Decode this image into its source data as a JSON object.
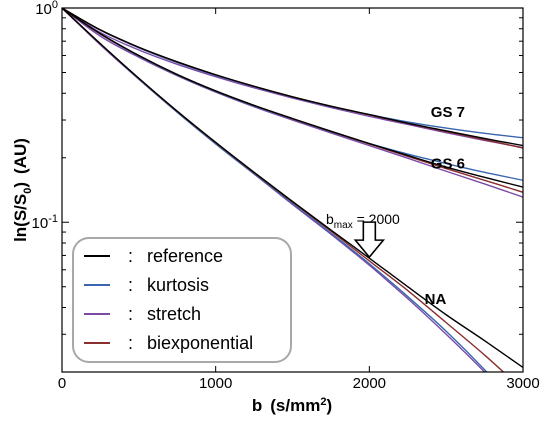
{
  "chart_data": {
    "type": "line",
    "xlabel_main": "b",
    "xlabel_units": "(s/mm",
    "xlabel_units_sup": "2",
    "xlabel_units_end": ")",
    "ylabel_main": "ln(S/S",
    "ylabel_sub": "0",
    "ylabel_end": ")",
    "ylabel_units": "(AU)",
    "xlim": [
      0,
      3000
    ],
    "ylim": [
      0.02,
      1.0
    ],
    "yscale": "log",
    "x_ticks": [
      {
        "value": 0,
        "label": "0"
      },
      {
        "value": 1000,
        "label": "1000"
      },
      {
        "value": 2000,
        "label": "2000"
      },
      {
        "value": 3000,
        "label": "3000"
      }
    ],
    "y_ticks": [
      {
        "value": 1.0,
        "base": "10",
        "exp": "0"
      },
      {
        "value": 0.1,
        "base": "10",
        "exp": "-1"
      }
    ],
    "x": [
      0,
      250,
      500,
      750,
      1000,
      1250,
      1500,
      1750,
      2000,
      2250,
      2500,
      2750,
      3000
    ],
    "groups": [
      {
        "label": "GS 7",
        "label_at": [
          2400,
          0.31
        ],
        "series": [
          {
            "name": "reference",
            "values": [
              1.0,
              0.79,
              0.656,
              0.561,
              0.488,
              0.431,
              0.385,
              0.348,
              0.318,
              0.29,
              0.267,
              0.246,
              0.228
            ]
          },
          {
            "name": "kurtosis",
            "values": [
              1.0,
              0.787,
              0.652,
              0.556,
              0.485,
              0.43,
              0.384,
              0.347,
              0.318,
              0.294,
              0.275,
              0.26,
              0.248
            ]
          },
          {
            "name": "stretch",
            "values": [
              1.0,
              0.768,
              0.637,
              0.546,
              0.478,
              0.424,
              0.38,
              0.343,
              0.312,
              0.286,
              0.262,
              0.241,
              0.223
            ]
          },
          {
            "name": "biexponential",
            "values": [
              1.0,
              0.789,
              0.655,
              0.56,
              0.488,
              0.431,
              0.385,
              0.348,
              0.317,
              0.289,
              0.265,
              0.243,
              0.222
            ]
          }
        ]
      },
      {
        "label": "GS 6",
        "label_at": [
          2400,
          0.178
        ],
        "series": [
          {
            "name": "reference",
            "values": [
              1.0,
              0.758,
              0.6,
              0.489,
              0.41,
              0.351,
              0.305,
              0.266,
              0.233,
              0.205,
              0.181,
              0.162,
              0.146
            ]
          },
          {
            "name": "kurtosis",
            "values": [
              1.0,
              0.755,
              0.597,
              0.487,
              0.408,
              0.349,
              0.303,
              0.264,
              0.233,
              0.208,
              0.188,
              0.171,
              0.157
            ]
          },
          {
            "name": "stretch",
            "values": [
              1.0,
              0.738,
              0.589,
              0.483,
              0.405,
              0.346,
              0.3,
              0.261,
              0.228,
              0.199,
              0.173,
              0.151,
              0.131
            ]
          },
          {
            "name": "biexponential",
            "values": [
              1.0,
              0.756,
              0.6,
              0.489,
              0.41,
              0.351,
              0.304,
              0.265,
              0.232,
              0.203,
              0.178,
              0.157,
              0.138
            ]
          }
        ]
      },
      {
        "label": "NA",
        "label_at": [
          2360,
          0.0415
        ],
        "series": [
          {
            "name": "reference",
            "values": [
              1.0,
              0.681,
              0.47,
              0.33,
              0.236,
              0.171,
              0.125,
              0.092,
              0.068,
              0.05,
              0.037,
              0.028,
              0.021
            ]
          },
          {
            "name": "kurtosis",
            "values": [
              1.0,
              0.679,
              0.466,
              0.326,
              0.232,
              0.168,
              0.122,
              0.089,
              0.064,
              0.045,
              0.031,
              0.0205,
              0.013
            ]
          },
          {
            "name": "stretch",
            "values": [
              1.0,
              0.673,
              0.465,
              0.327,
              0.233,
              0.168,
              0.121,
              0.088,
              0.063,
              0.044,
              0.03,
              0.02,
              0.013
            ]
          },
          {
            "name": "biexponential",
            "values": [
              1.0,
              0.68,
              0.469,
              0.329,
              0.235,
              0.17,
              0.124,
              0.091,
              0.066,
              0.048,
              0.034,
              0.024,
              0.0165
            ]
          }
        ]
      }
    ],
    "series_colors": {
      "reference": "#000000",
      "kurtosis": "#3a66b0",
      "stretch": "#7b4aa8",
      "biexponential": "#8b2e2e"
    },
    "annotation": {
      "prefix": "b",
      "prefix_sub": "max",
      "text": " = 2000",
      "arrow_at": [
        2000,
        0.068
      ]
    },
    "legend": {
      "placement": "bottom-left",
      "separator": ":",
      "entries": [
        {
          "key": "reference",
          "label": "reference"
        },
        {
          "key": "kurtosis",
          "label": "kurtosis"
        },
        {
          "key": "stretch",
          "label": "stretch"
        },
        {
          "key": "biexponential",
          "label": "biexponential"
        }
      ]
    },
    "grid": false
  }
}
